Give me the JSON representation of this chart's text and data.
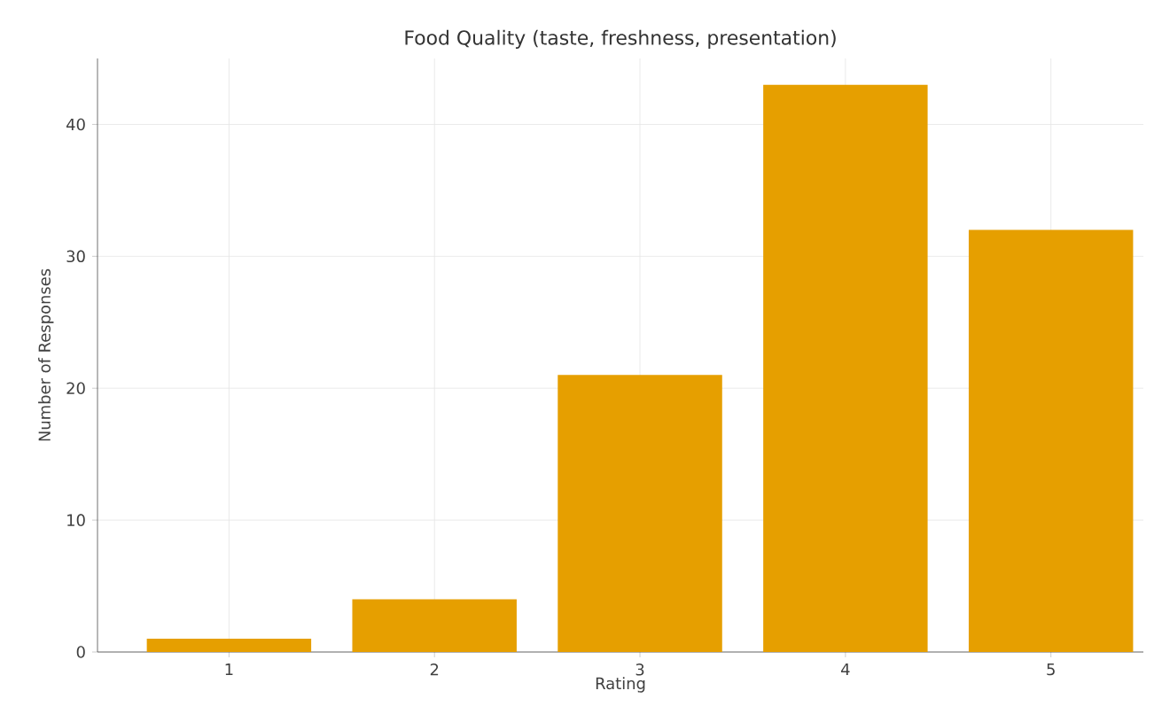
{
  "chart_data": {
    "type": "bar",
    "title": "Food Quality (taste, freshness, presentation)",
    "xlabel": "Rating",
    "ylabel": "Number of Responses",
    "categories": [
      "1",
      "2",
      "3",
      "4",
      "5"
    ],
    "values": [
      1,
      4,
      21,
      43,
      32
    ],
    "color": "#e69f00",
    "ylim": [
      0,
      45
    ],
    "yticks": [
      0,
      10,
      20,
      30,
      40
    ],
    "grid": true
  }
}
